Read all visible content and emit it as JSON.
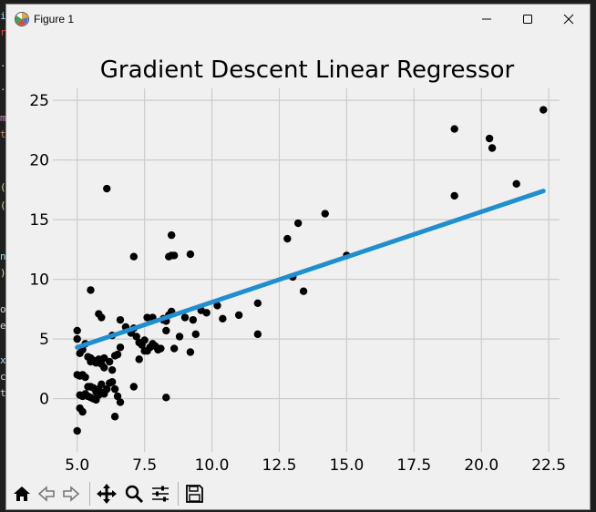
{
  "window": {
    "title": "Figure 1",
    "minimize_icon": "minimize-icon",
    "maximize_icon": "maximize-icon",
    "close_icon": "close-icon"
  },
  "editor_fragment": {
    "chars": [
      "i",
      "r",
      ".",
      ".",
      "m",
      "t",
      "(",
      "(",
      "n",
      ")",
      "o",
      "e",
      "x",
      "c",
      "t"
    ]
  },
  "toolbar": {
    "items": [
      "home-icon",
      "back-icon",
      "forward-icon",
      "pan-icon",
      "zoom-icon",
      "configure-subplots-icon",
      "save-icon"
    ]
  },
  "chart_data": {
    "type": "scatter",
    "title": "Gradient Descent Linear Regressor",
    "xlabel": "",
    "ylabel": "",
    "xlim": [
      4.3,
      22.9
    ],
    "ylim": [
      -4.0,
      26.0
    ],
    "xticks": [
      "5.0",
      "7.5",
      "10.0",
      "12.5",
      "15.0",
      "17.5",
      "20.0",
      "22.5"
    ],
    "yticks": [
      "0",
      "5",
      "10",
      "15",
      "20",
      "25"
    ],
    "grid": true,
    "colors": {
      "points": "#000000",
      "line": "#1f8fd1"
    },
    "series": [
      {
        "type": "scatter",
        "x": [
          6.1,
          5.0,
          5.0,
          5.1,
          5.2,
          5.3,
          5.4,
          5.5,
          5.6,
          5.7,
          5.8,
          5.9,
          6.0,
          6.2,
          6.3,
          6.4,
          6.5,
          6.6,
          5.0,
          5.1,
          5.2,
          5.3,
          5.4,
          5.5,
          5.6,
          5.7,
          5.8,
          5.9,
          6.0,
          5.1,
          5.2,
          5.3,
          5.4,
          5.5,
          5.6,
          5.7,
          5.8,
          5.9,
          6.0,
          6.1,
          6.2,
          6.3,
          6.4,
          6.5,
          6.6,
          5.0,
          5.1,
          5.2,
          5.5,
          5.8,
          5.9,
          6.3,
          7.0,
          7.1,
          7.2,
          7.3,
          7.4,
          7.5,
          7.6,
          7.7,
          7.8,
          7.9,
          8.0,
          8.1,
          8.2,
          8.3,
          8.4,
          8.5,
          8.6,
          8.8,
          9.0,
          9.2,
          9.4,
          9.6,
          9.8,
          10.2,
          10.4,
          11.0,
          11.7,
          11.7,
          12.8,
          13.0,
          13.2,
          13.4,
          14.2,
          15.0,
          7.1,
          8.3,
          8.4,
          8.5,
          8.5,
          8.6,
          9.2,
          8.3,
          7.1,
          7.3,
          9.3,
          19.0,
          19.0,
          20.3,
          20.4,
          21.3,
          22.3,
          6.4,
          5.5,
          6.0,
          6.6,
          6.8,
          7.6,
          7.5,
          7.8,
          8.2
        ],
        "y": [
          17.6,
          5.7,
          5.0,
          3.8,
          4.1,
          4.6,
          3.5,
          3.4,
          3.2,
          3.0,
          3.3,
          2.9,
          2.6,
          3.1,
          2.4,
          3.6,
          3.7,
          4.3,
          2.0,
          1.9,
          2.0,
          1.8,
          1.0,
          1.0,
          0.9,
          0.6,
          0.8,
          1.2,
          0.5,
          0.3,
          0.2,
          0.4,
          0.2,
          0.1,
          0.0,
          -0.1,
          0.3,
          0.5,
          0.4,
          0.8,
          1.3,
          1.4,
          0.8,
          0.2,
          -0.3,
          -2.7,
          -0.8,
          -1.1,
          9.1,
          7.1,
          6.8,
          5.3,
          5.5,
          5.9,
          5.2,
          4.7,
          4.5,
          4.9,
          4.0,
          4.3,
          4.6,
          4.4,
          4.1,
          4.2,
          6.7,
          5.7,
          7.0,
          7.3,
          4.2,
          5.2,
          6.8,
          3.9,
          5.4,
          7.4,
          7.2,
          7.8,
          6.7,
          7.0,
          5.4,
          8.0,
          13.4,
          10.2,
          14.7,
          9.0,
          15.5,
          12.0,
          11.9,
          0.1,
          11.9,
          12.0,
          13.7,
          12.0,
          12.1,
          6.5,
          1.0,
          3.3,
          6.6,
          22.6,
          17.0,
          21.8,
          21.0,
          18.0,
          24.2,
          -1.5,
          3.1,
          3.4,
          6.6,
          6.0,
          6.8,
          4.0,
          6.8,
          6.6
        ]
      },
      {
        "type": "line",
        "x": [
          5.0,
          22.3
        ],
        "y": [
          4.3,
          17.4
        ]
      }
    ]
  }
}
